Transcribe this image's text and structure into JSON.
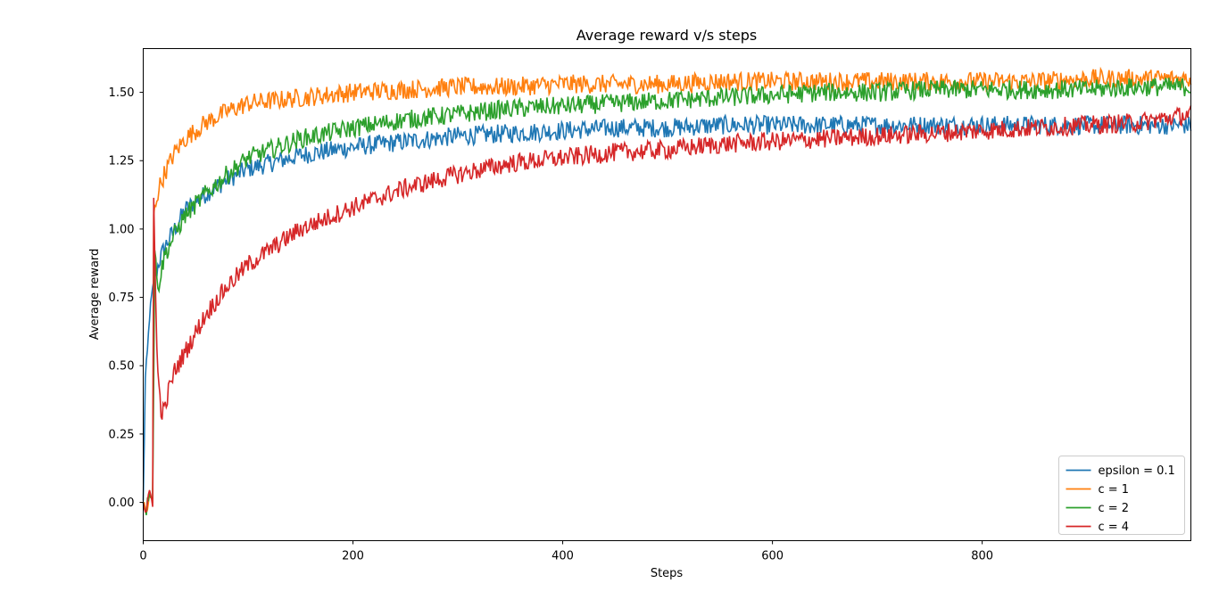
{
  "chart_data": {
    "type": "line",
    "title": "Average reward v/s steps",
    "xlabel": "Steps",
    "ylabel": "Average reward",
    "xlim": [
      0,
      999
    ],
    "ylim": [
      -0.14,
      1.66
    ],
    "xticks": [
      0,
      200,
      400,
      600,
      800
    ],
    "xtick_labels": [
      "0",
      "200",
      "400",
      "600",
      "800"
    ],
    "yticks": [
      0.0,
      0.25,
      0.5,
      0.75,
      1.0,
      1.25,
      1.5
    ],
    "ytick_labels": [
      "0.00",
      "0.25",
      "0.50",
      "0.75",
      "1.00",
      "1.25",
      "1.50"
    ],
    "grid": false,
    "legend_position": "lower-right",
    "series": [
      {
        "name": "epsilon = 0.1",
        "color": "#1f77b4",
        "x": [
          0,
          2,
          4,
          6,
          8,
          10,
          15,
          20,
          30,
          40,
          60,
          80,
          100,
          150,
          200,
          250,
          300,
          350,
          400,
          450,
          500,
          550,
          600,
          650,
          700,
          750,
          800,
          850,
          900,
          950,
          999
        ],
        "y": [
          0.0,
          0.45,
          0.55,
          0.68,
          0.75,
          0.8,
          0.88,
          0.93,
          1.0,
          1.07,
          1.13,
          1.18,
          1.22,
          1.27,
          1.3,
          1.32,
          1.34,
          1.35,
          1.36,
          1.37,
          1.37,
          1.38,
          1.38,
          1.38,
          1.38,
          1.38,
          1.38,
          1.38,
          1.38,
          1.38,
          1.38
        ]
      },
      {
        "name": "c = 1",
        "color": "#ff7f0e",
        "x": [
          0,
          3,
          6,
          9,
          10,
          12,
          15,
          20,
          30,
          40,
          60,
          80,
          100,
          150,
          200,
          250,
          300,
          350,
          400,
          450,
          500,
          550,
          600,
          650,
          700,
          750,
          800,
          850,
          900,
          950,
          999
        ],
        "y": [
          0.0,
          -0.04,
          0.02,
          0.0,
          1.05,
          1.1,
          1.15,
          1.2,
          1.28,
          1.33,
          1.39,
          1.43,
          1.46,
          1.48,
          1.5,
          1.51,
          1.52,
          1.52,
          1.53,
          1.53,
          1.53,
          1.54,
          1.54,
          1.54,
          1.54,
          1.54,
          1.54,
          1.54,
          1.55,
          1.55,
          1.55
        ]
      },
      {
        "name": "c = 2",
        "color": "#2ca02c",
        "x": [
          0,
          3,
          6,
          9,
          11,
          13,
          15,
          18,
          20,
          30,
          40,
          60,
          80,
          100,
          150,
          200,
          250,
          300,
          350,
          400,
          450,
          500,
          550,
          600,
          650,
          700,
          750,
          800,
          850,
          900,
          950,
          999
        ],
        "y": [
          0.0,
          -0.03,
          0.05,
          0.01,
          0.92,
          0.82,
          0.8,
          0.86,
          0.9,
          0.98,
          1.05,
          1.13,
          1.2,
          1.26,
          1.33,
          1.37,
          1.4,
          1.42,
          1.44,
          1.45,
          1.46,
          1.47,
          1.48,
          1.49,
          1.5,
          1.5,
          1.51,
          1.51,
          1.51,
          1.51,
          1.52,
          1.52
        ]
      },
      {
        "name": "c = 4",
        "color": "#d62728",
        "x": [
          0,
          3,
          6,
          9,
          10,
          11,
          13,
          15,
          17,
          20,
          25,
          30,
          40,
          50,
          60,
          80,
          100,
          150,
          200,
          250,
          300,
          350,
          400,
          450,
          500,
          550,
          600,
          650,
          700,
          750,
          800,
          850,
          900,
          950,
          999
        ],
        "y": [
          0.0,
          -0.04,
          0.04,
          0.0,
          1.13,
          0.9,
          0.55,
          0.42,
          0.34,
          0.33,
          0.42,
          0.48,
          0.55,
          0.62,
          0.69,
          0.79,
          0.87,
          1.0,
          1.08,
          1.15,
          1.2,
          1.24,
          1.26,
          1.28,
          1.29,
          1.31,
          1.32,
          1.33,
          1.34,
          1.35,
          1.36,
          1.37,
          1.38,
          1.39,
          1.42
        ]
      }
    ]
  }
}
